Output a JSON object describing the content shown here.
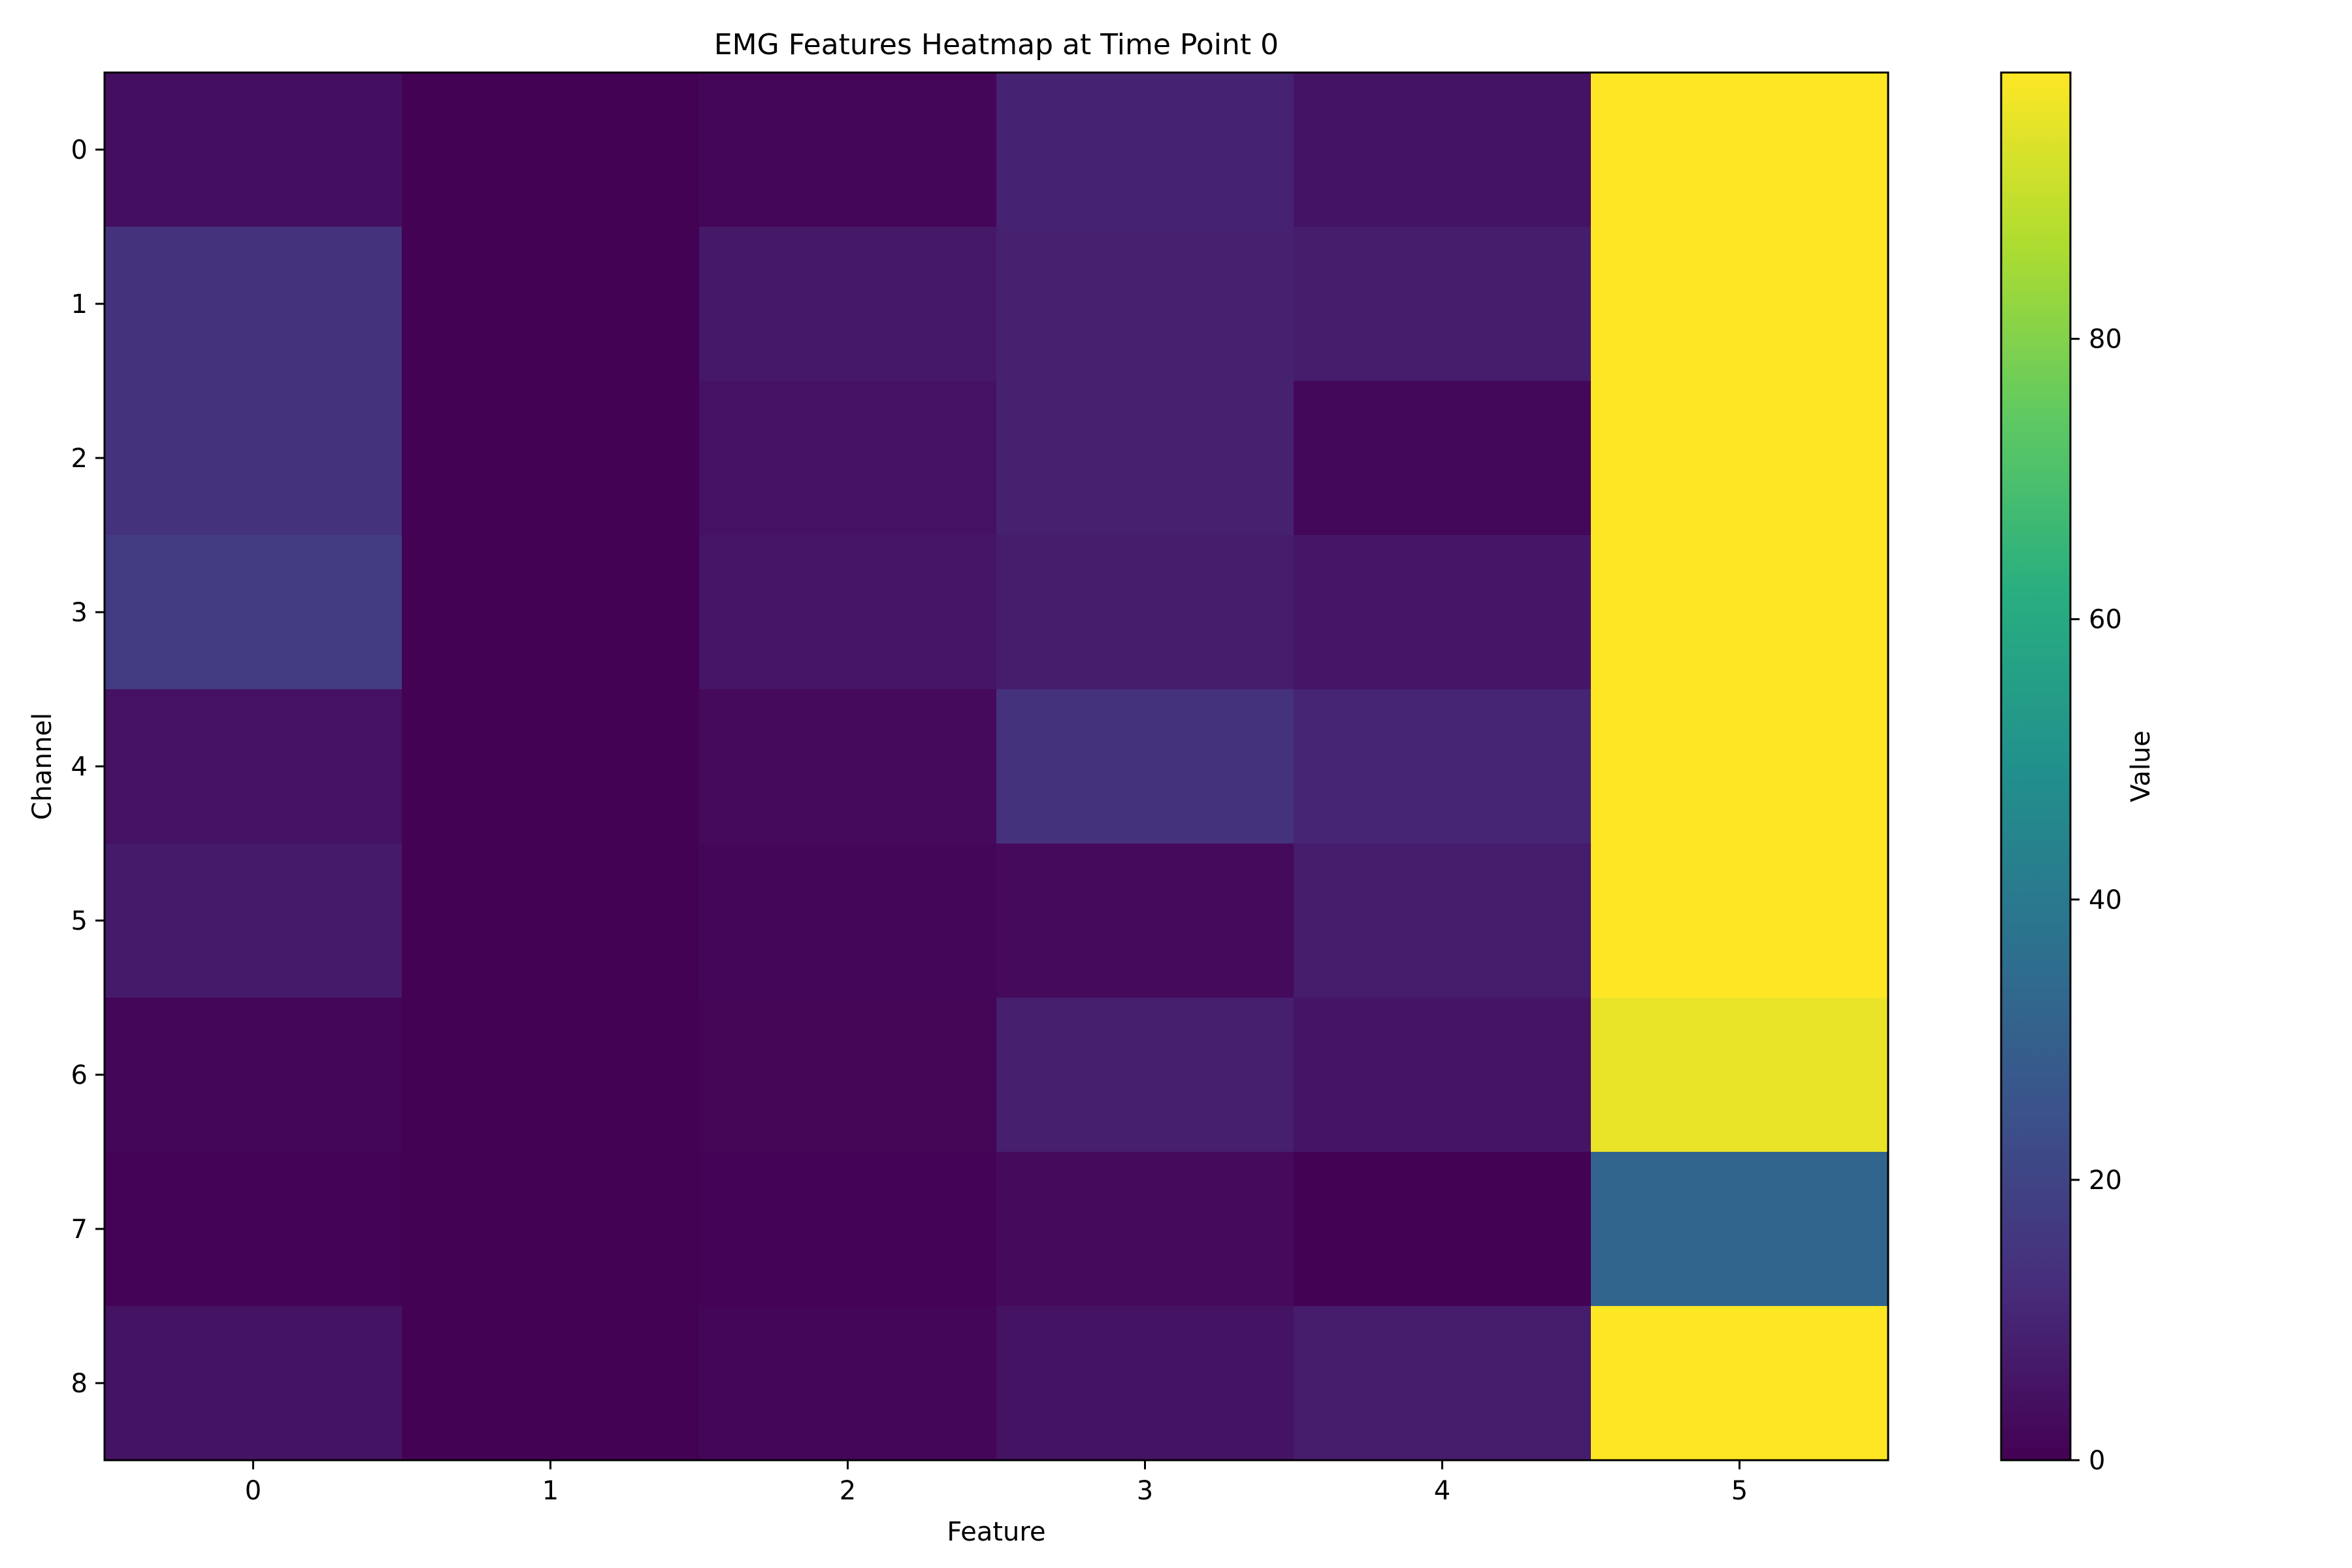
{
  "chart_data": {
    "type": "heatmap",
    "title": "EMG Features Heatmap at Time Point 0",
    "xlabel": "Feature",
    "ylabel": "Channel",
    "x_categories": [
      "0",
      "1",
      "2",
      "3",
      "4",
      "5"
    ],
    "y_categories": [
      "0",
      "1",
      "2",
      "3",
      "4",
      "5",
      "6",
      "7",
      "8"
    ],
    "values": [
      [
        4.0,
        0.3,
        1.5,
        9.5,
        5.0,
        99.0
      ],
      [
        14.0,
        0.3,
        6.5,
        9.0,
        8.0,
        99.0
      ],
      [
        14.0,
        0.2,
        4.5,
        9.0,
        2.0,
        99.0
      ],
      [
        17.0,
        0.2,
        6.0,
        8.0,
        6.0,
        99.0
      ],
      [
        4.5,
        0.2,
        2.5,
        14.0,
        10.0,
        99.0
      ],
      [
        7.0,
        0.2,
        1.5,
        2.5,
        7.5,
        99.0
      ],
      [
        1.5,
        0.3,
        1.0,
        8.5,
        5.5,
        96.0
      ],
      [
        0.5,
        0.3,
        0.5,
        2.5,
        0.3,
        32.0
      ],
      [
        5.0,
        0.3,
        1.5,
        5.0,
        7.5,
        99.0
      ]
    ],
    "colormap": "viridis",
    "vmin": 0,
    "vmax": 99,
    "colorbar": {
      "label": "Value",
      "ticks": [
        0,
        20,
        40,
        60,
        80
      ]
    },
    "grid": false
  }
}
